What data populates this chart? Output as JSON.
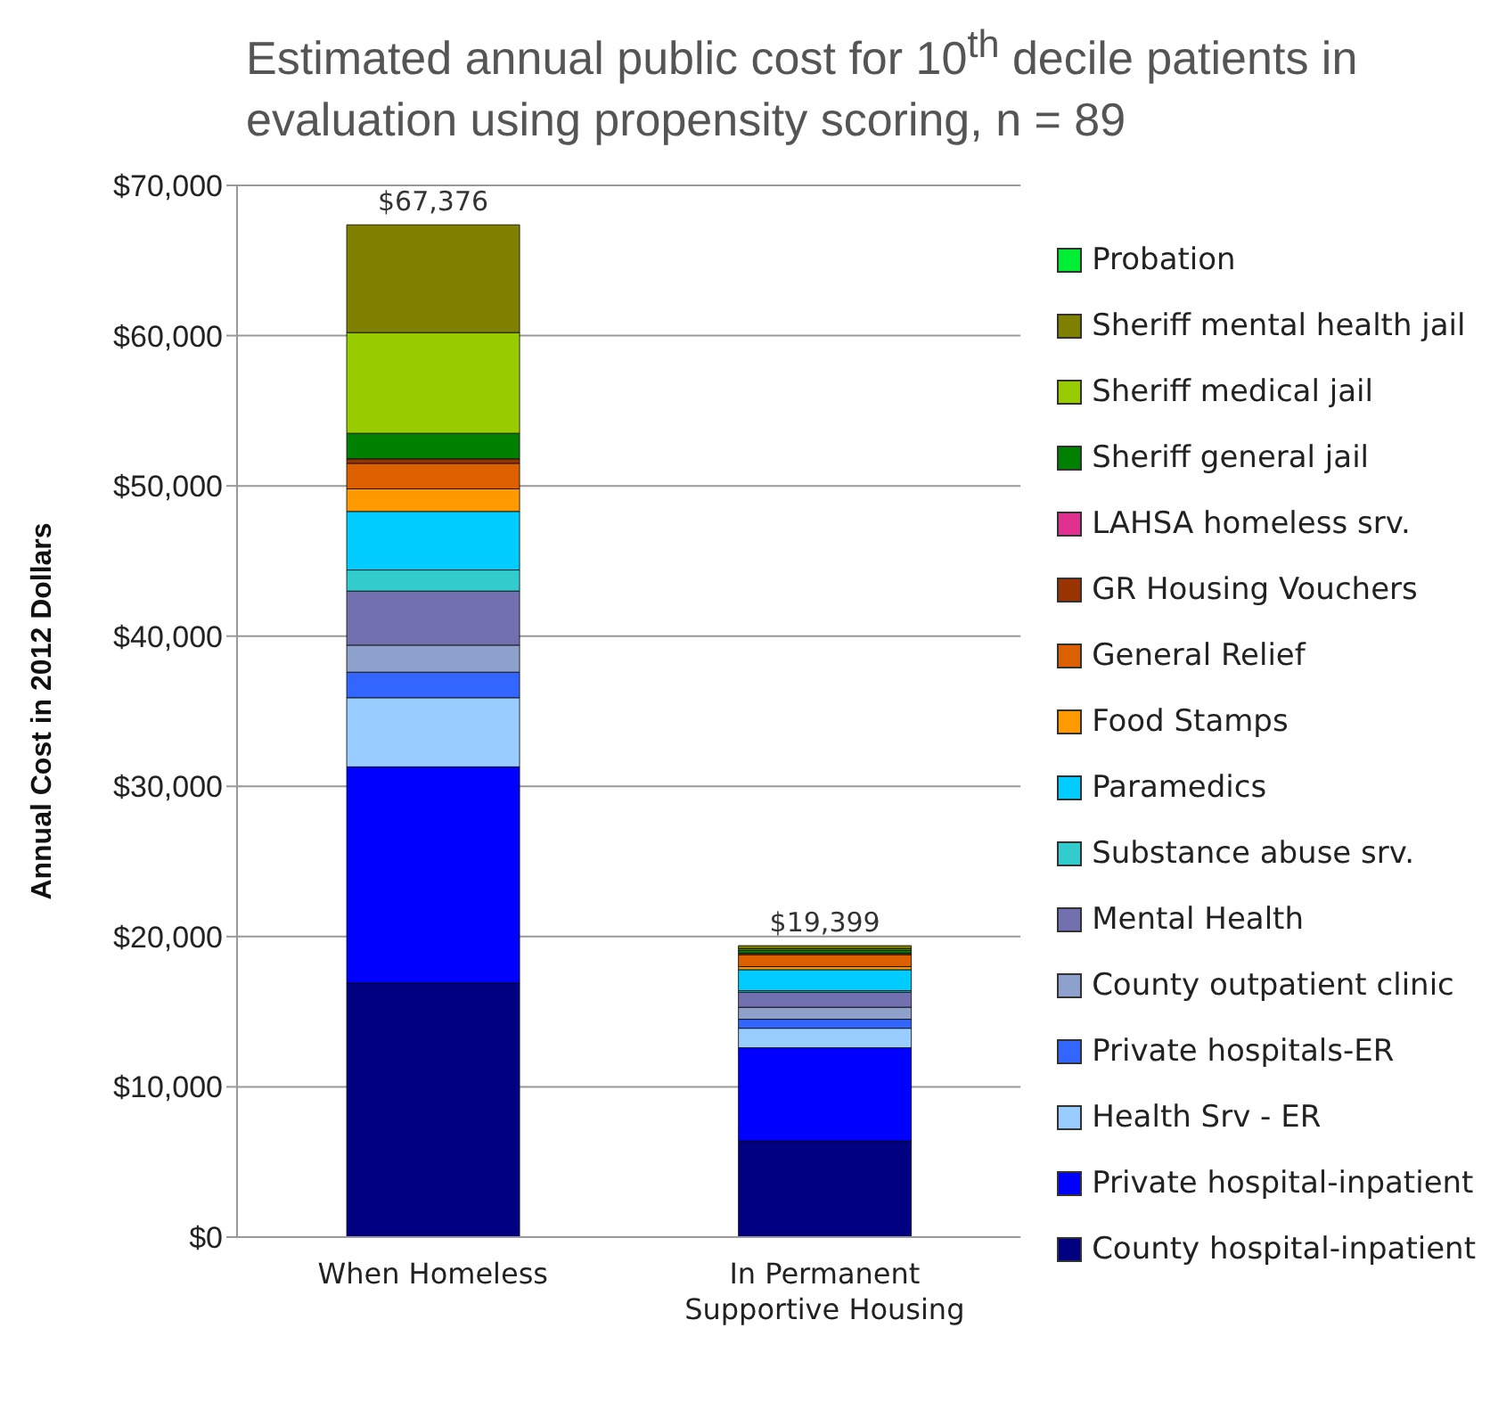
{
  "chart_data": {
    "type": "bar",
    "stacked": true,
    "title": "Estimated annual public cost for 10$^{th}$  decile patients in evaluation using propensity scoring, n = 89",
    "ylabel": "Annual Cost in 2012 Dollars",
    "categories": [
      "When Homeless",
      "In Permanent Supportive Housing"
    ],
    "series": [
      {
        "name": "County hospital-inpatient",
        "color": "#000080",
        "values": [
          16900,
          6400
        ]
      },
      {
        "name": "Private hospital-inpatient",
        "color": "#0000ff",
        "values": [
          14400,
          6200
        ]
      },
      {
        "name": "Health Srv - ER",
        "color": "#99ccff",
        "values": [
          4600,
          1300
        ]
      },
      {
        "name": "Private hospitals-ER",
        "color": "#3366ff",
        "values": [
          1700,
          600
        ]
      },
      {
        "name": "County outpatient clinic",
        "color": "#8ea0cc",
        "values": [
          1800,
          800
        ]
      },
      {
        "name": "Mental Health",
        "color": "#7370b0",
        "values": [
          3600,
          1000
        ]
      },
      {
        "name": "Substance abuse srv.",
        "color": "#33cccc",
        "values": [
          1400,
          100
        ]
      },
      {
        "name": "Paramedics",
        "color": "#00ccff",
        "values": [
          3900,
          1400
        ]
      },
      {
        "name": "Food Stamps",
        "color": "#ff9900",
        "values": [
          1500,
          200
        ]
      },
      {
        "name": "General Relief",
        "color": "#dd6000",
        "values": [
          1700,
          800
        ]
      },
      {
        "name": "GR Housing Vouchers",
        "color": "#993300",
        "values": [
          300,
          100
        ]
      },
      {
        "name": "LAHSA homeless srv.",
        "color": "#e03090",
        "values": [
          0,
          0
        ]
      },
      {
        "name": "Sheriff general jail",
        "color": "#008000",
        "values": [
          1700,
          200
        ]
      },
      {
        "name": "Sheriff medical jail",
        "color": "#99cc00",
        "values": [
          6700,
          100
        ]
      },
      {
        "name": "Sheriff mental health jail",
        "color": "#808000",
        "values": [
          7176,
          199
        ]
      },
      {
        "name": "Probation",
        "color": "#00ee33",
        "values": [
          0,
          0
        ]
      }
    ],
    "totals": [
      "$67,376",
      "$19,399"
    ],
    "ylim": [
      0,
      70000
    ],
    "yticks": [
      {
        "value": 0,
        "label": "$0"
      },
      {
        "value": 10000,
        "label": "$10,000"
      },
      {
        "value": 20000,
        "label": "$20,000"
      },
      {
        "value": 30000,
        "label": "$30,000"
      },
      {
        "value": 40000,
        "label": "$40,000"
      },
      {
        "value": 50000,
        "label": "$50,000"
      },
      {
        "value": 60000,
        "label": "$60,000"
      },
      {
        "value": 70000,
        "label": "$70,000"
      }
    ],
    "grid": "y",
    "legend": "right"
  }
}
